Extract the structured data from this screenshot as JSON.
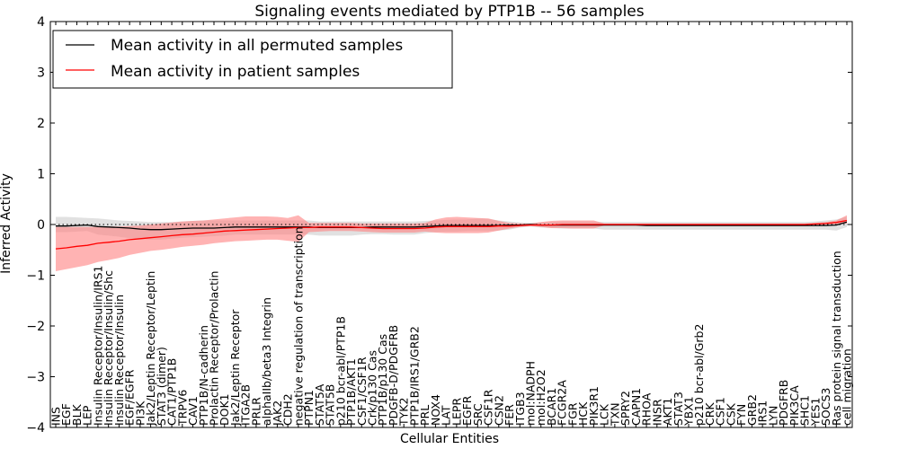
{
  "chart_data": {
    "type": "line",
    "title": "Signaling events mediated by PTP1B -- 56 samples",
    "xlabel": "Cellular Entities",
    "ylabel": "Inferred Activity",
    "ylim": [
      -4,
      4
    ],
    "yticks": [
      -4,
      -3,
      -2,
      -1,
      0,
      1,
      2,
      3,
      4
    ],
    "legend": {
      "placement": "top-left"
    },
    "colors": {
      "permuted_line": "#000000",
      "patient_line": "#ff0000",
      "permuted_band": "#c8c8c8",
      "patient_band": "#ff8080"
    },
    "categories": [
      "INS",
      "EGF",
      "BLK",
      "LEP",
      "Insulin Receptor/Insulin/IRS1",
      "Insulin Receptor/Insulin/Shc",
      "Insulin Receptor/Insulin",
      "EGF/EGFR",
      "PI3K",
      "Jak2/Leptin Receptor/Leptin",
      "STAT3 (dimer)",
      "CAT1/PTP1B",
      "TRPV6",
      "CAV1",
      "PTP1B/N-cadherin",
      "Prolactin Receptor/Prolactin",
      "DOK1",
      "Jak2/Leptin Receptor",
      "ITGA2B",
      "PRLR",
      "alphaIIb/beta3 Integrin",
      "JAK2",
      "CDH2",
      "negative regulation of transcription",
      "PTPN1",
      "STAT5A",
      "STAT5B",
      "p210 bcr-abl/PTP1B",
      "PTP1B/AKT1",
      "CSF1/CSF1R",
      "Crk/p130 Cas",
      "PTP1B/p130 Cas",
      "PDGFB-D/PDGFRB",
      "TYK2",
      "PTP1B/IRS1/GRB2",
      "PRL",
      "NOX4",
      "LAT",
      "LEPR",
      "EGFR",
      "SRC",
      "CSF1R",
      "CSN2",
      "FER",
      "ITGB3",
      "mol:NADPH",
      "mol:H2O2",
      "BCAR1",
      "FCGR2A",
      "FGR",
      "HCK",
      "PIK3R1",
      "LCK",
      "TXN",
      "SPRY2",
      "CAPN1",
      "RHOA",
      "INSR",
      "AKT1",
      "STAT3",
      "YBX1",
      "p210 bcr-abl/Grb2",
      "CRK",
      "CSF1",
      "CSK",
      "FYN",
      "GRB2",
      "IRS1",
      "LYN",
      "PDGFRB",
      "PIK3CA",
      "SHC1",
      "YES1",
      "SOCS3",
      "Ras protein signal transduction",
      "cell migration"
    ],
    "series": [
      {
        "name": "Mean activity in all permuted samples",
        "values": [
          -0.03,
          -0.03,
          -0.02,
          -0.01,
          -0.04,
          -0.05,
          -0.06,
          -0.07,
          -0.09,
          -0.1,
          -0.1,
          -0.09,
          -0.08,
          -0.07,
          -0.07,
          -0.07,
          -0.06,
          -0.05,
          -0.05,
          -0.05,
          -0.05,
          -0.05,
          -0.05,
          -0.05,
          -0.05,
          -0.06,
          -0.06,
          -0.06,
          -0.06,
          -0.06,
          -0.05,
          -0.05,
          -0.05,
          -0.05,
          -0.05,
          -0.04,
          -0.03,
          -0.02,
          -0.02,
          -0.02,
          -0.02,
          -0.02,
          -0.02,
          -0.01,
          -0.01,
          0.0,
          -0.01,
          -0.01,
          -0.01,
          -0.01,
          -0.01,
          -0.01,
          -0.01,
          -0.01,
          -0.01,
          -0.01,
          -0.02,
          -0.02,
          -0.02,
          -0.02,
          -0.02,
          -0.02,
          -0.02,
          -0.02,
          -0.02,
          -0.02,
          -0.02,
          -0.02,
          -0.02,
          -0.02,
          -0.02,
          -0.02,
          -0.02,
          -0.02,
          -0.01,
          0.05
        ],
        "lower": [
          -0.15,
          -0.15,
          -0.14,
          -0.13,
          -0.2,
          -0.22,
          -0.24,
          -0.27,
          -0.29,
          -0.3,
          -0.3,
          -0.28,
          -0.26,
          -0.25,
          -0.24,
          -0.23,
          -0.22,
          -0.2,
          -0.2,
          -0.2,
          -0.2,
          -0.2,
          -0.2,
          -0.2,
          -0.2,
          -0.22,
          -0.22,
          -0.22,
          -0.22,
          -0.2,
          -0.19,
          -0.19,
          -0.2,
          -0.2,
          -0.2,
          -0.17,
          -0.15,
          -0.14,
          -0.14,
          -0.13,
          -0.13,
          -0.13,
          -0.12,
          -0.1,
          -0.06,
          -0.04,
          -0.06,
          -0.07,
          -0.08,
          -0.08,
          -0.08,
          -0.08,
          -0.1,
          -0.1,
          -0.1,
          -0.1,
          -0.1,
          -0.1,
          -0.1,
          -0.1,
          -0.1,
          -0.1,
          -0.1,
          -0.1,
          -0.1,
          -0.1,
          -0.1,
          -0.1,
          -0.1,
          -0.1,
          -0.1,
          -0.1,
          -0.1,
          -0.1,
          -0.12,
          -0.05
        ],
        "upper": [
          0.15,
          0.15,
          0.14,
          0.13,
          0.12,
          0.1,
          0.08,
          0.07,
          0.06,
          0.05,
          0.05,
          0.05,
          0.06,
          0.07,
          0.08,
          0.08,
          0.08,
          0.08,
          0.08,
          0.08,
          0.08,
          0.08,
          0.08,
          0.08,
          0.08,
          0.06,
          0.06,
          0.06,
          0.06,
          0.06,
          0.06,
          0.06,
          0.06,
          0.06,
          0.06,
          0.07,
          0.08,
          0.09,
          0.1,
          0.1,
          0.12,
          0.11,
          0.08,
          0.06,
          0.04,
          0.03,
          0.04,
          0.05,
          0.06,
          0.06,
          0.06,
          0.06,
          0.05,
          0.05,
          0.05,
          0.05,
          0.05,
          0.05,
          0.05,
          0.05,
          0.05,
          0.05,
          0.05,
          0.05,
          0.05,
          0.05,
          0.05,
          0.05,
          0.05,
          0.05,
          0.05,
          0.05,
          0.06,
          0.08,
          0.1,
          0.15
        ]
      },
      {
        "name": "Mean activity in patient samples",
        "values": [
          -0.48,
          -0.46,
          -0.43,
          -0.41,
          -0.37,
          -0.35,
          -0.33,
          -0.3,
          -0.28,
          -0.26,
          -0.24,
          -0.22,
          -0.2,
          -0.19,
          -0.17,
          -0.15,
          -0.13,
          -0.12,
          -0.11,
          -0.1,
          -0.09,
          -0.08,
          -0.07,
          -0.06,
          -0.06,
          -0.05,
          -0.05,
          -0.05,
          -0.05,
          -0.06,
          -0.07,
          -0.08,
          -0.08,
          -0.08,
          -0.08,
          -0.07,
          -0.05,
          -0.04,
          -0.04,
          -0.04,
          -0.04,
          -0.04,
          -0.03,
          -0.03,
          -0.02,
          -0.01,
          -0.01,
          -0.01,
          0.0,
          0.0,
          0.0,
          0.0,
          0.0,
          0.0,
          0.0,
          0.0,
          0.0,
          0.0,
          0.0,
          0.0,
          0.0,
          0.0,
          0.0,
          0.0,
          0.0,
          0.0,
          0.0,
          0.0,
          0.0,
          0.0,
          0.0,
          0.0,
          0.01,
          0.02,
          0.04,
          0.08
        ],
        "lower": [
          -0.92,
          -0.88,
          -0.84,
          -0.8,
          -0.74,
          -0.7,
          -0.66,
          -0.6,
          -0.56,
          -0.52,
          -0.5,
          -0.47,
          -0.44,
          -0.42,
          -0.4,
          -0.37,
          -0.35,
          -0.33,
          -0.32,
          -0.31,
          -0.3,
          -0.3,
          -0.32,
          -0.34,
          -0.15,
          -0.14,
          -0.13,
          -0.13,
          -0.13,
          -0.14,
          -0.15,
          -0.16,
          -0.16,
          -0.16,
          -0.16,
          -0.14,
          -0.16,
          -0.17,
          -0.17,
          -0.17,
          -0.17,
          -0.16,
          -0.12,
          -0.08,
          -0.05,
          -0.03,
          -0.05,
          -0.07,
          -0.07,
          -0.08,
          -0.08,
          -0.08,
          -0.02,
          -0.02,
          -0.02,
          -0.02,
          -0.02,
          -0.02,
          -0.02,
          -0.02,
          -0.02,
          -0.02,
          -0.02,
          -0.02,
          -0.02,
          -0.02,
          -0.02,
          -0.02,
          -0.02,
          -0.02,
          -0.02,
          -0.02,
          -0.01,
          0.0,
          0.01,
          0.02
        ],
        "upper": [
          -0.05,
          -0.05,
          -0.05,
          -0.05,
          -0.05,
          -0.04,
          -0.04,
          -0.03,
          -0.02,
          0.0,
          0.02,
          0.04,
          0.06,
          0.07,
          0.08,
          0.1,
          0.12,
          0.14,
          0.16,
          0.16,
          0.16,
          0.15,
          0.13,
          0.18,
          0.03,
          0.03,
          0.03,
          0.03,
          0.03,
          0.02,
          0.02,
          0.02,
          0.02,
          0.02,
          0.02,
          0.03,
          0.1,
          0.14,
          0.15,
          0.14,
          0.13,
          0.12,
          0.07,
          0.03,
          0.02,
          0.02,
          0.05,
          0.07,
          0.08,
          0.08,
          0.08,
          0.08,
          0.02,
          0.02,
          0.02,
          0.02,
          0.02,
          0.02,
          0.02,
          0.02,
          0.02,
          0.02,
          0.02,
          0.02,
          0.02,
          0.02,
          0.02,
          0.02,
          0.02,
          0.02,
          0.02,
          0.02,
          0.03,
          0.05,
          0.08,
          0.18
        ]
      }
    ]
  }
}
